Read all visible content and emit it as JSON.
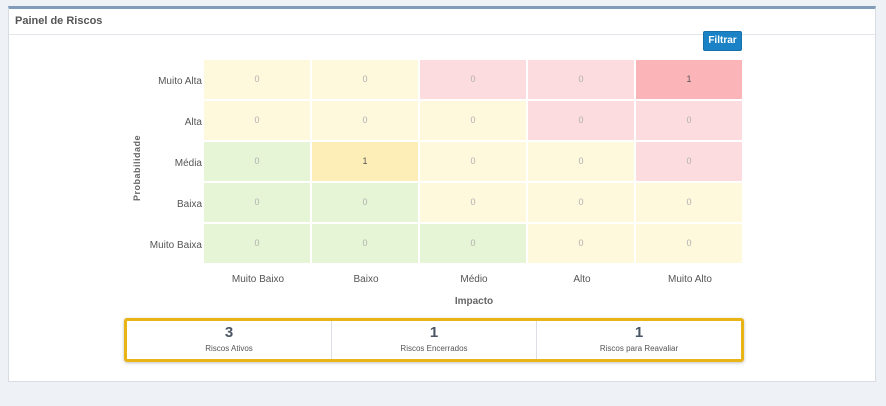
{
  "panel": {
    "title": "Painel de Riscos"
  },
  "toolbar": {
    "filter_label": "Filtrar"
  },
  "matrix": {
    "y_title": "Probabilidade",
    "x_title": "Impacto",
    "rows": [
      "Muito Alta",
      "Alta",
      "Média",
      "Baixa",
      "Muito Baixa"
    ],
    "cols": [
      "Muito Baixo",
      "Baixo",
      "Médio",
      "Alto",
      "Muito Alto"
    ],
    "values": [
      [
        "0",
        "0",
        "0",
        "0",
        "1"
      ],
      [
        "0",
        "0",
        "0",
        "0",
        "0"
      ],
      [
        "0",
        "1",
        "0",
        "0",
        "0"
      ],
      [
        "0",
        "0",
        "0",
        "0",
        "0"
      ],
      [
        "0",
        "0",
        "0",
        "0",
        "0"
      ]
    ],
    "colors": [
      [
        "#fef8dd",
        "#fef8dd",
        "#fcdcde",
        "#fcdcde",
        "#fbb5b8"
      ],
      [
        "#fef8dd",
        "#fef8dd",
        "#fef8dd",
        "#fcdcde",
        "#fcdcde"
      ],
      [
        "#e6f5d5",
        "#fdeeb8",
        "#fef8dd",
        "#fef8dd",
        "#fcdcde"
      ],
      [
        "#e6f5d5",
        "#e6f5d5",
        "#fef8dd",
        "#fef8dd",
        "#fef8dd"
      ],
      [
        "#e6f5d5",
        "#e6f5d5",
        "#e6f5d5",
        "#fef8dd",
        "#fef8dd"
      ]
    ]
  },
  "stats": [
    {
      "value": "3",
      "label": "Riscos Ativos"
    },
    {
      "value": "1",
      "label": "Riscos Encerrados"
    },
    {
      "value": "1",
      "label": "Riscos para Reavaliar"
    }
  ]
}
